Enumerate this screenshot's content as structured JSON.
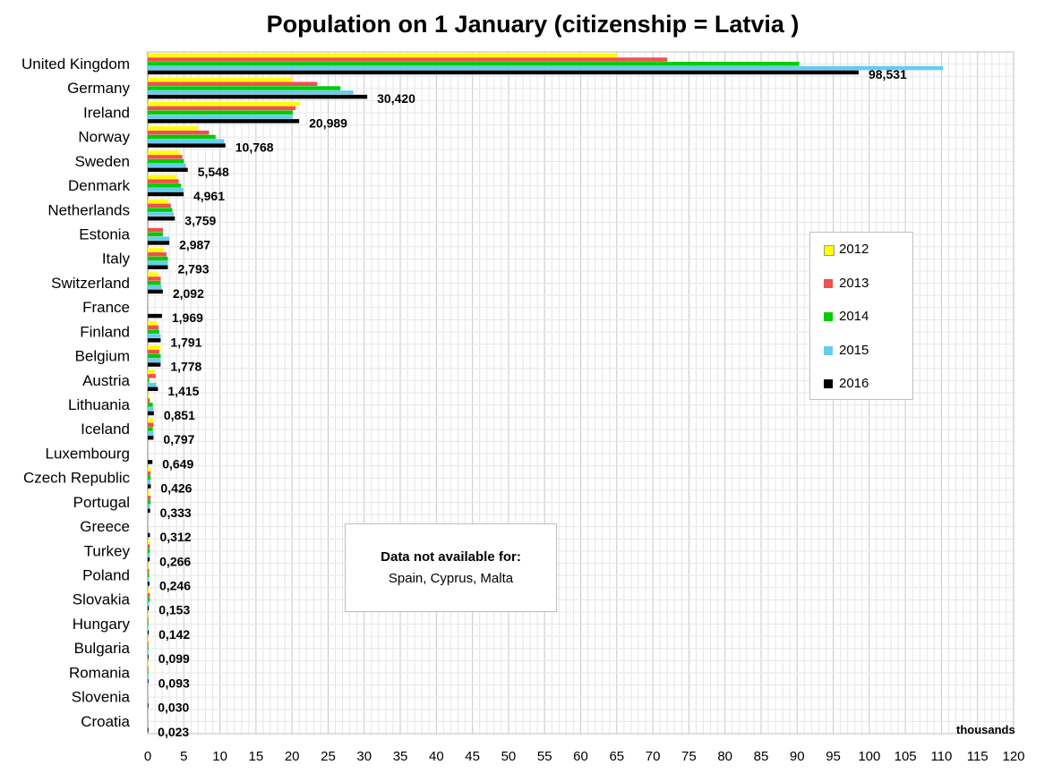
{
  "chart_data": {
    "type": "bar",
    "orientation": "horizontal",
    "title": "Population on 1 January (citizenship = Latvia )",
    "unit_label": "thousands",
    "xlim": [
      0,
      120
    ],
    "x_ticks": [
      "0",
      "5",
      "10",
      "15",
      "20",
      "25",
      "30",
      "35",
      "40",
      "45",
      "50",
      "55",
      "60",
      "65",
      "70",
      "75",
      "80",
      "85",
      "90",
      "95",
      "100",
      "105",
      "110",
      "115",
      "120"
    ],
    "grid": true,
    "legend_position": "right",
    "categories": [
      "United Kingdom",
      "Germany",
      "Ireland",
      "Norway",
      "Sweden",
      "Denmark",
      "Netherlands",
      "Estonia",
      "Italy",
      "Switzerland",
      "France",
      "Finland",
      "Belgium",
      "Austria",
      "Lithuania",
      "Iceland",
      "Luxembourg",
      "Czech Republic",
      "Portugal",
      "Greece",
      "Turkey",
      "Poland",
      "Slovakia",
      "Hungary",
      "Bulgaria",
      "Romania",
      "Slovenia",
      "Croatia"
    ],
    "series": [
      {
        "name": "2012",
        "color": "#FFFF00",
        "values": [
          65,
          20,
          21,
          7,
          4.5,
          4,
          2.8,
          0,
          2.2,
          1.5,
          0,
          1.3,
          1.8,
          0.9,
          0.2,
          0.8,
          0,
          0.4,
          0.3,
          0,
          0.3,
          0.2,
          0.2,
          0.1,
          0.1,
          0.1,
          0,
          0
        ]
      },
      {
        "name": "2013",
        "color": "#F05050",
        "values": [
          72,
          23.5,
          20.5,
          8.5,
          4.8,
          4.3,
          3.2,
          2.1,
          2.6,
          1.8,
          0,
          1.5,
          1.6,
          1.1,
          0.3,
          0.8,
          0,
          0.4,
          0.4,
          0,
          0.3,
          0.2,
          0.3,
          0.1,
          0.1,
          0.1,
          0,
          0
        ]
      },
      {
        "name": "2014",
        "color": "#00CC00",
        "values": [
          90.3,
          26.7,
          20.1,
          9.4,
          5,
          4.6,
          3.4,
          2.1,
          2.8,
          1.8,
          0,
          1.6,
          1.8,
          0.2,
          0.7,
          0.7,
          0,
          0.4,
          0.4,
          0,
          0.3,
          0.2,
          0.3,
          0.1,
          0.1,
          0.1,
          0,
          0
        ]
      },
      {
        "name": "2015",
        "color": "#66CCEE",
        "values": [
          110.2,
          28.5,
          20.1,
          10.6,
          5.3,
          4.9,
          3.6,
          3,
          2.8,
          1.9,
          0,
          1.8,
          1.8,
          1.2,
          0.8,
          0.8,
          0,
          0.4,
          0.3,
          0,
          0.3,
          0.2,
          0.2,
          0.1,
          0.1,
          0.1,
          0,
          0
        ]
      },
      {
        "name": "2016",
        "color": "#000000",
        "values": [
          98.531,
          30.42,
          20.989,
          10.768,
          5.548,
          4.961,
          3.759,
          2.987,
          2.793,
          2.092,
          1.969,
          1.791,
          1.778,
          1.415,
          0.851,
          0.797,
          0.649,
          0.426,
          0.333,
          0.312,
          0.266,
          0.246,
          0.153,
          0.142,
          0.099,
          0.093,
          0.03,
          0.023
        ]
      }
    ],
    "data_labels_2016": [
      "98,531",
      "30,420",
      "20,989",
      "10,768",
      "5,548",
      "4,961",
      "3,759",
      "2,987",
      "2,793",
      "2,092",
      "1,969",
      "1,791",
      "1,778",
      "1,415",
      "0,851",
      "0,797",
      "0,649",
      "0,426",
      "0,333",
      "0,312",
      "0,266",
      "0,246",
      "0,153",
      "0,142",
      "0,099",
      "0,093",
      "0,030",
      "0,023"
    ],
    "annotation": {
      "title": "Data not available for:",
      "body": "Spain, Cyprus, Malta"
    }
  }
}
